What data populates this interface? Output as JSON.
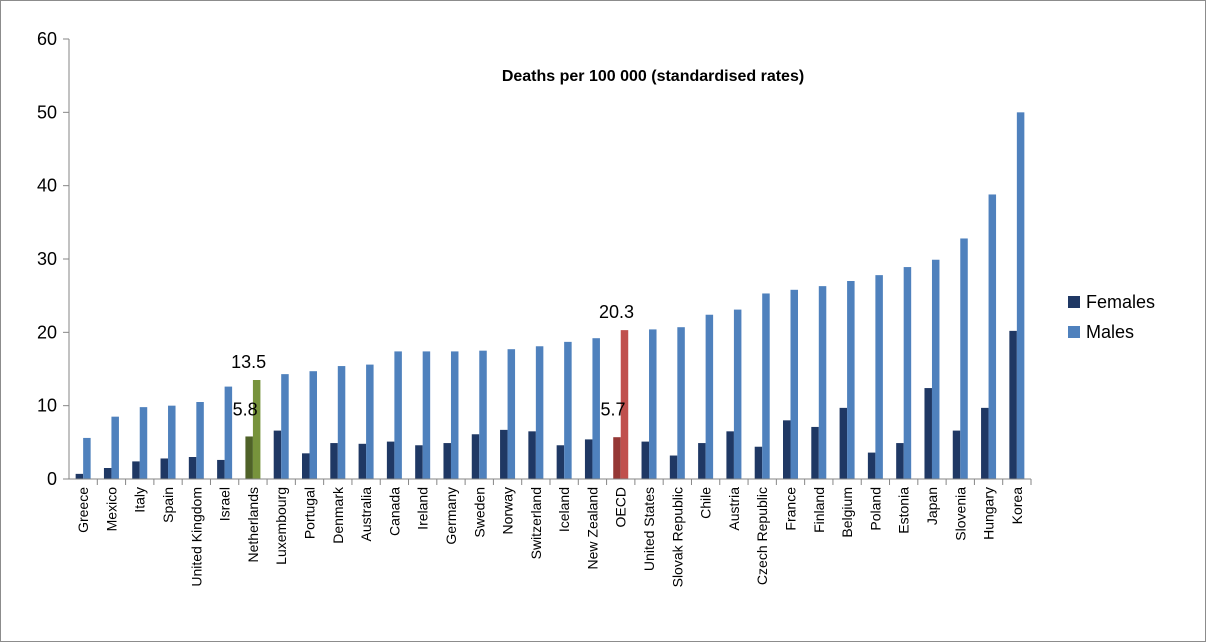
{
  "chart_data": {
    "type": "bar",
    "title": "Deaths per 100 000 (standardised rates)",
    "xlabel": "",
    "ylabel": "",
    "ylim": [
      0,
      60
    ],
    "yticks": [
      0,
      10,
      20,
      30,
      40,
      50,
      60
    ],
    "grid": false,
    "legend_position": "right",
    "categories": [
      "Greece",
      "Mexico",
      "Italy",
      "Spain",
      "United Kingdom",
      "Israel",
      "Netherlands",
      "Luxembourg",
      "Portugal",
      "Denmark",
      "Australia",
      "Canada",
      "Ireland",
      "Germany",
      "Sweden",
      "Norway",
      "Switzerland",
      "Iceland",
      "New Zealand",
      "OECD",
      "United States",
      "Slovak Republic",
      "Chile",
      "Austria",
      "Czech Republic",
      "France",
      "Finland",
      "Belgium",
      "Poland",
      "Estonia",
      "Japan",
      "Slovenia",
      "Hungary",
      "Korea"
    ],
    "series": [
      {
        "name": "Females",
        "color": "#1f3864",
        "values": [
          0.7,
          1.5,
          2.4,
          2.8,
          3.0,
          2.6,
          5.8,
          6.6,
          3.5,
          4.9,
          4.8,
          5.1,
          4.6,
          4.9,
          6.1,
          6.7,
          6.5,
          4.6,
          5.4,
          5.7,
          5.1,
          3.2,
          4.9,
          6.5,
          4.4,
          8.0,
          7.1,
          9.7,
          3.6,
          4.9,
          12.4,
          6.6,
          9.7,
          20.2
        ]
      },
      {
        "name": "Males",
        "color": "#4f81bd",
        "values": [
          5.6,
          8.5,
          9.8,
          10.0,
          10.5,
          12.6,
          13.5,
          14.3,
          14.7,
          15.4,
          15.6,
          17.4,
          17.4,
          17.4,
          17.5,
          17.7,
          18.1,
          18.7,
          19.2,
          20.3,
          20.4,
          20.7,
          22.4,
          23.1,
          25.3,
          25.8,
          26.3,
          27.0,
          27.8,
          28.9,
          29.9,
          32.8,
          38.8,
          50.0
        ]
      }
    ],
    "highlights": {
      "Netherlands": {
        "female_color": "#4f6228",
        "male_color": "#77933c"
      },
      "OECD": {
        "female_color": "#953735",
        "male_color": "#c0504d"
      }
    },
    "annotations": [
      {
        "category": "Netherlands",
        "series": "Males",
        "text": "13.5"
      },
      {
        "category": "Netherlands",
        "series": "Females",
        "text": "5.8"
      },
      {
        "category": "OECD",
        "series": "Males",
        "text": "20.3"
      },
      {
        "category": "OECD",
        "series": "Females",
        "text": "5.7"
      }
    ]
  }
}
